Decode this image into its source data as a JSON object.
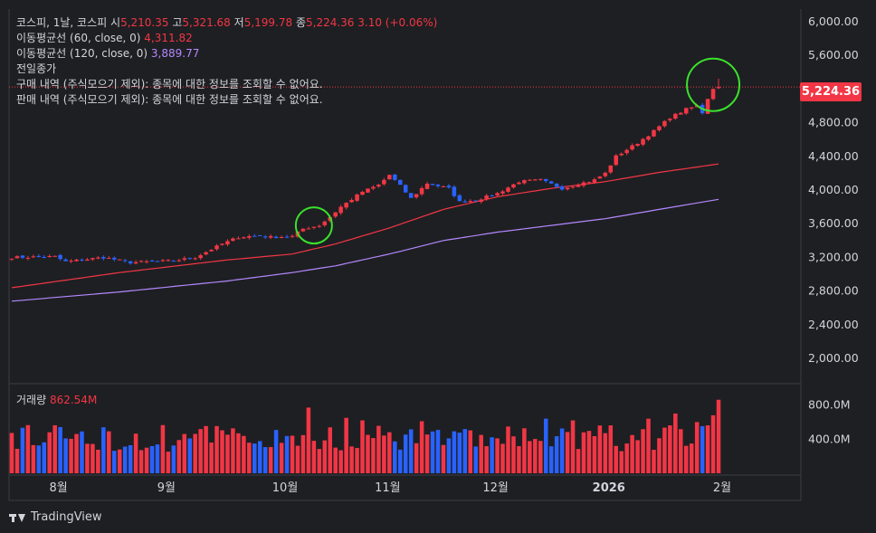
{
  "header": {
    "symbol": "코스피, 1날, 코스피",
    "open_label": "시",
    "open": "5,210.35",
    "high_label": "고",
    "high": "5,321.68",
    "low_label": "저",
    "low": "5,199.78",
    "close_label": "종",
    "close": "5,224.36",
    "change": "3.10 (+0.06%)"
  },
  "indicators": {
    "ma60_label": "이동평균선 (60, close, 0)",
    "ma60_value": "4,311.82",
    "ma120_label": "이동평균선 (120, close, 0)",
    "ma120_value": "3,889.77",
    "prev_close_label": "전일종가",
    "buy_note": "구매 내역 (주식모으기 제외): 종목에 대한 정보를 조회할 수 없어요.",
    "sell_note": "판매 내역 (주식모으기 제외): 종목에 대한 정보를 조회할 수 없어요."
  },
  "volume": {
    "label": "거래량",
    "value": "862.54M"
  },
  "last_price_tag": "5,224.36",
  "footer": {
    "brand": "TradingView"
  },
  "colors": {
    "up": "#f23645",
    "down": "#2962ff",
    "ma60": "#f23645",
    "ma120": "#b388ff",
    "highlight": "#39e32c",
    "background": "#1e1f22"
  },
  "chart_data": {
    "type": "candlestick",
    "price_axis": {
      "ylim": [
        1700,
        6150
      ],
      "ticks": [
        "6,000.00",
        "5,600.00",
        "5,200.00",
        "4,800.00",
        "4,400.00",
        "4,000.00",
        "3,600.00",
        "3,200.00",
        "2,800.00",
        "2,400.00",
        "2,000.00"
      ],
      "tick_values": [
        6000,
        5600,
        5200,
        4800,
        4400,
        4000,
        3600,
        3200,
        2800,
        2400,
        2000
      ]
    },
    "volume_axis": {
      "ylim": [
        0,
        1050
      ],
      "ticks": [
        "800.0M",
        "400.0M"
      ],
      "tick_values": [
        800,
        400
      ]
    },
    "x_axis": {
      "count": 132,
      "labels": [
        {
          "text": "8월",
          "index": 9
        },
        {
          "text": "9월",
          "index": 29
        },
        {
          "text": "10월",
          "index": 51
        },
        {
          "text": "11월",
          "index": 70
        },
        {
          "text": "12월",
          "index": 90
        },
        {
          "text": "2026",
          "index": 111
        },
        {
          "text": "2월",
          "index": 132
        }
      ]
    },
    "anchors": [
      [
        0,
        3200
      ],
      [
        8,
        3210
      ],
      [
        10,
        3150
      ],
      [
        17,
        3200
      ],
      [
        22,
        3140
      ],
      [
        30,
        3160
      ],
      [
        34,
        3200
      ],
      [
        39,
        3360
      ],
      [
        42,
        3440
      ],
      [
        46,
        3460
      ],
      [
        48,
        3440
      ],
      [
        52,
        3450
      ],
      [
        54,
        3540
      ],
      [
        57,
        3580
      ],
      [
        59,
        3680
      ],
      [
        61,
        3800
      ],
      [
        65,
        3980
      ],
      [
        68,
        4060
      ],
      [
        70,
        4180
      ],
      [
        72,
        4050
      ],
      [
        74,
        3900
      ],
      [
        77,
        4080
      ],
      [
        81,
        4020
      ],
      [
        83,
        3860
      ],
      [
        86,
        3880
      ],
      [
        90,
        3960
      ],
      [
        94,
        4100
      ],
      [
        98,
        4120
      ],
      [
        102,
        4020
      ],
      [
        105,
        4070
      ],
      [
        108,
        4120
      ],
      [
        110,
        4200
      ],
      [
        112,
        4400
      ],
      [
        116,
        4560
      ],
      [
        119,
        4700
      ],
      [
        122,
        4860
      ],
      [
        125,
        4960
      ],
      [
        127,
        5000
      ],
      [
        128,
        4920
      ],
      [
        129,
        5090
      ],
      [
        130,
        5210
      ],
      [
        131,
        5224
      ]
    ],
    "ma60_points": [
      [
        0,
        2840
      ],
      [
        20,
        3020
      ],
      [
        40,
        3170
      ],
      [
        52,
        3240
      ],
      [
        60,
        3360
      ],
      [
        70,
        3550
      ],
      [
        80,
        3770
      ],
      [
        90,
        3920
      ],
      [
        100,
        4020
      ],
      [
        110,
        4100
      ],
      [
        120,
        4210
      ],
      [
        131,
        4310
      ]
    ],
    "ma120_points": [
      [
        0,
        2680
      ],
      [
        20,
        2790
      ],
      [
        40,
        2920
      ],
      [
        52,
        3020
      ],
      [
        60,
        3100
      ],
      [
        70,
        3240
      ],
      [
        80,
        3400
      ],
      [
        90,
        3500
      ],
      [
        100,
        3580
      ],
      [
        110,
        3660
      ],
      [
        120,
        3770
      ],
      [
        131,
        3890
      ]
    ],
    "volume_avg": 420,
    "volume_highlights": [
      [
        55,
        770
      ],
      [
        62,
        650
      ],
      [
        65,
        620
      ],
      [
        76,
        610
      ],
      [
        99,
        640
      ],
      [
        104,
        620
      ],
      [
        109,
        560
      ],
      [
        118,
        640
      ],
      [
        123,
        700
      ],
      [
        127,
        600
      ],
      [
        130,
        680
      ],
      [
        131,
        862
      ]
    ],
    "markers": [
      {
        "label": "breakout",
        "index": 56,
        "price": 3580
      },
      {
        "label": "latest",
        "index": 130,
        "price": 5250
      }
    ],
    "last_close": 5224.36,
    "last_high": 5321.68,
    "last_low": 5199.78,
    "last_open": 5210.35
  }
}
